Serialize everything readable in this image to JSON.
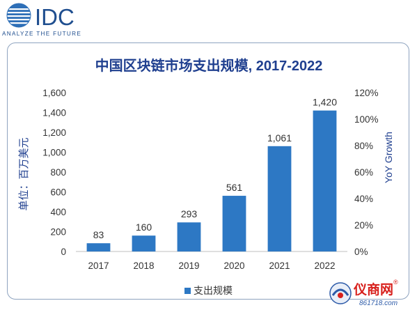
{
  "logo": {
    "text": "IDC",
    "tagline": "ANALYZE THE FUTURE",
    "colors": {
      "text": "#1f4e8f",
      "globe": "#2e6fb7"
    }
  },
  "watermark": {
    "name": "仪商网",
    "url": "861718.com",
    "registered": "®",
    "colors": {
      "name": "#d8211d",
      "url": "#2c5aa8"
    }
  },
  "chart_data": {
    "type": "bar",
    "title": "中国区块链市场支出规模, 2017-2022",
    "ylabel": "单位：百万美元",
    "y2label": "YoY Growth",
    "categories": [
      "2017",
      "2018",
      "2019",
      "2020",
      "2021",
      "2022"
    ],
    "series": [
      {
        "name": "支出规模",
        "values": [
          83,
          160,
          293,
          561,
          1061,
          1420
        ],
        "color": "#2d78c4"
      }
    ],
    "data_labels": [
      "83",
      "160",
      "293",
      "561",
      "1,061",
      "1,420"
    ],
    "ylim": [
      0,
      1600
    ],
    "y_ticks": [
      "0",
      "200",
      "400",
      "600",
      "800",
      "1,000",
      "1,200",
      "1,400",
      "1,600"
    ],
    "y2lim": [
      0,
      120
    ],
    "y2_ticks": [
      "0%",
      "20%",
      "40%",
      "60%",
      "80%",
      "100%",
      "120%"
    ],
    "grid": false,
    "legend_position": "bottom",
    "colors": {
      "title": "#1f3f8f",
      "ylabel": "#1f3f8f",
      "axis_text": "#333333"
    }
  }
}
